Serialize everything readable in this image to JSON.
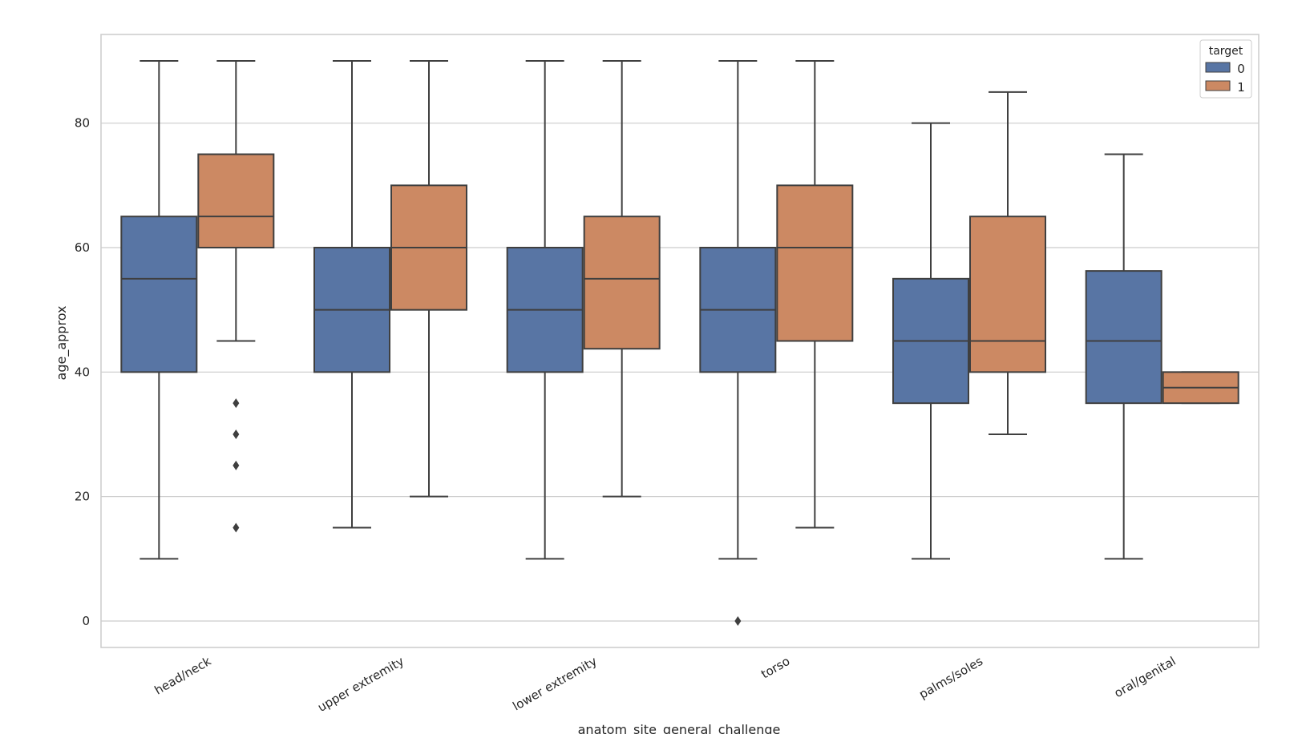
{
  "chart_data": {
    "type": "boxplot",
    "title": "",
    "xlabel": "anatom_site_general_challenge",
    "ylabel": "age_approx",
    "ylim": [
      -4.25,
      94.25
    ],
    "yticks": [
      0,
      20,
      40,
      60,
      80
    ],
    "grid": true,
    "legend": {
      "title": "target",
      "placement": "top-right"
    },
    "categories": [
      "head/neck",
      "upper extremity",
      "lower extremity",
      "torso",
      "palms/soles",
      "oral/genital"
    ],
    "series": [
      {
        "name": "0",
        "color": "#5875a4",
        "boxes": [
          {
            "whisker_low": 10,
            "q1": 40,
            "median": 55,
            "q3": 65,
            "whisker_high": 90,
            "outliers": []
          },
          {
            "whisker_low": 15,
            "q1": 40,
            "median": 50,
            "q3": 60,
            "whisker_high": 90,
            "outliers": []
          },
          {
            "whisker_low": 10,
            "q1": 40,
            "median": 50,
            "q3": 60,
            "whisker_high": 90,
            "outliers": []
          },
          {
            "whisker_low": 10,
            "q1": 40,
            "median": 50,
            "q3": 60,
            "whisker_high": 90,
            "outliers": [
              0
            ]
          },
          {
            "whisker_low": 10,
            "q1": 35,
            "median": 45,
            "q3": 55,
            "whisker_high": 80,
            "outliers": []
          },
          {
            "whisker_low": 10,
            "q1": 35,
            "median": 45,
            "q3": 56.25,
            "whisker_high": 75,
            "outliers": []
          }
        ]
      },
      {
        "name": "1",
        "color": "#cc8963",
        "boxes": [
          {
            "whisker_low": 45,
            "q1": 60,
            "median": 65,
            "q3": 75,
            "whisker_high": 90,
            "outliers": [
              35,
              30,
              25,
              15
            ]
          },
          {
            "whisker_low": 20,
            "q1": 50,
            "median": 60,
            "q3": 70,
            "whisker_high": 90,
            "outliers": []
          },
          {
            "whisker_low": 20,
            "q1": 43.75,
            "median": 55,
            "q3": 65,
            "whisker_high": 90,
            "outliers": []
          },
          {
            "whisker_low": 15,
            "q1": 45,
            "median": 60,
            "q3": 70,
            "whisker_high": 90,
            "outliers": []
          },
          {
            "whisker_low": 30,
            "q1": 40,
            "median": 45,
            "q3": 65,
            "whisker_high": 85,
            "outliers": []
          },
          {
            "whisker_low": 35,
            "q1": 35,
            "median": 37.5,
            "q3": 40,
            "whisker_high": 40,
            "outliers": []
          }
        ]
      }
    ]
  }
}
